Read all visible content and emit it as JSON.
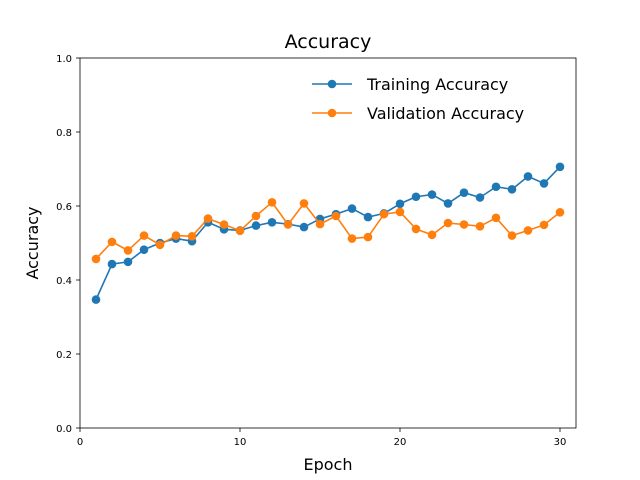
{
  "chart_data": {
    "type": "line",
    "title": "Accuracy",
    "xlabel": "Epoch",
    "ylabel": "Accuracy",
    "xlim": [
      0,
      31
    ],
    "ylim": [
      0.0,
      1.0
    ],
    "xticks": [
      0,
      10,
      20,
      30
    ],
    "yticks": [
      0.0,
      0.2,
      0.4,
      0.6,
      0.8,
      1.0
    ],
    "ytick_labels": [
      "0.0",
      "0.2",
      "0.4",
      "0.6",
      "0.8",
      "1.0"
    ],
    "grid": false,
    "legend_position": "top-right",
    "x": [
      1,
      2,
      3,
      4,
      5,
      6,
      7,
      8,
      9,
      10,
      11,
      12,
      13,
      14,
      15,
      16,
      17,
      18,
      19,
      20,
      21,
      22,
      23,
      24,
      25,
      26,
      27,
      28,
      29,
      30
    ],
    "series": [
      {
        "name": "Training Accuracy",
        "color": "#1f77b4",
        "values": [
          0.347,
          0.443,
          0.449,
          0.482,
          0.5,
          0.512,
          0.505,
          0.556,
          0.537,
          0.534,
          0.547,
          0.556,
          0.551,
          0.543,
          0.565,
          0.578,
          0.593,
          0.57,
          0.58,
          0.606,
          0.625,
          0.631,
          0.607,
          0.636,
          0.623,
          0.652,
          0.645,
          0.68,
          0.661,
          0.706
        ]
      },
      {
        "name": "Validation Accuracy",
        "color": "#ff7f0e",
        "values": [
          0.457,
          0.503,
          0.48,
          0.52,
          0.495,
          0.52,
          0.518,
          0.566,
          0.55,
          0.533,
          0.573,
          0.61,
          0.55,
          0.607,
          0.551,
          0.573,
          0.512,
          0.516,
          0.578,
          0.584,
          0.538,
          0.522,
          0.554,
          0.55,
          0.545,
          0.568,
          0.52,
          0.534,
          0.549,
          0.583
        ]
      }
    ]
  }
}
